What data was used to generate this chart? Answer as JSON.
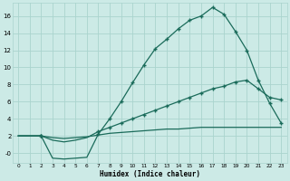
{
  "xlabel": "Humidex (Indice chaleur)",
  "bg_color": "#cceae6",
  "line_color": "#1a6b5a",
  "grid_color": "#aad4ce",
  "xlim": [
    -0.5,
    23.5
  ],
  "ylim": [
    -1.2,
    17.5
  ],
  "xticks": [
    0,
    1,
    2,
    3,
    4,
    5,
    6,
    7,
    8,
    9,
    10,
    11,
    12,
    13,
    14,
    15,
    16,
    17,
    18,
    19,
    20,
    21,
    22,
    23
  ],
  "yticks": [
    0,
    2,
    4,
    6,
    8,
    10,
    12,
    14,
    16
  ],
  "line_top_x": [
    0,
    1,
    2,
    3,
    4,
    5,
    6,
    7,
    8,
    9,
    10,
    11,
    12,
    13,
    14,
    15,
    16,
    17,
    18,
    19,
    20,
    21,
    22,
    23
  ],
  "line_top_y": [
    2.0,
    2.0,
    2.0,
    -0.6,
    -0.7,
    -0.6,
    -0.5,
    2.2,
    4.0,
    6.0,
    8.2,
    10.3,
    12.2,
    13.3,
    14.5,
    15.5,
    16.0,
    17.0,
    16.2,
    14.2,
    12.0,
    8.5,
    5.8,
    3.5
  ],
  "line_mid_x": [
    0,
    1,
    2,
    3,
    4,
    5,
    6,
    7,
    8,
    9,
    10,
    11,
    12,
    13,
    14,
    15,
    16,
    17,
    18,
    19,
    20,
    21,
    22,
    23
  ],
  "line_mid_y": [
    2.0,
    2.0,
    2.0,
    1.5,
    1.3,
    1.5,
    1.8,
    2.5,
    3.0,
    3.5,
    4.0,
    4.5,
    5.0,
    5.5,
    6.0,
    6.5,
    7.0,
    7.5,
    7.8,
    8.3,
    8.5,
    7.5,
    6.5,
    6.2
  ],
  "line_bot_x": [
    0,
    1,
    2,
    3,
    4,
    5,
    6,
    7,
    8,
    9,
    10,
    11,
    12,
    13,
    14,
    15,
    16,
    17,
    18,
    19,
    20,
    21,
    22,
    23
  ],
  "line_bot_y": [
    2.0,
    2.0,
    2.0,
    1.8,
    1.7,
    1.8,
    1.9,
    2.1,
    2.3,
    2.4,
    2.5,
    2.6,
    2.7,
    2.8,
    2.8,
    2.9,
    3.0,
    3.0,
    3.0,
    3.0,
    3.0,
    3.0,
    3.0,
    3.0
  ],
  "markers_top_x": [
    2,
    7,
    8,
    9,
    10,
    11,
    12,
    13,
    14,
    15,
    16,
    17,
    18,
    19,
    20,
    21,
    22,
    23
  ],
  "markers_top_y": [
    2.0,
    2.2,
    4.0,
    6.0,
    8.2,
    10.3,
    12.2,
    13.3,
    14.5,
    15.5,
    16.0,
    17.0,
    16.2,
    14.2,
    12.0,
    8.5,
    5.8,
    3.5
  ],
  "markers_mid_x": [
    2,
    7,
    8,
    9,
    10,
    11,
    12,
    13,
    14,
    15,
    16,
    17,
    18,
    19,
    20,
    21,
    22,
    23
  ],
  "markers_mid_y": [
    2.0,
    2.5,
    3.0,
    3.5,
    4.0,
    4.5,
    5.0,
    5.5,
    6.0,
    6.5,
    7.0,
    7.5,
    7.8,
    8.3,
    8.5,
    7.5,
    6.5,
    6.2
  ],
  "markers_bot_x": [
    2
  ],
  "markers_bot_y": [
    2.0
  ]
}
